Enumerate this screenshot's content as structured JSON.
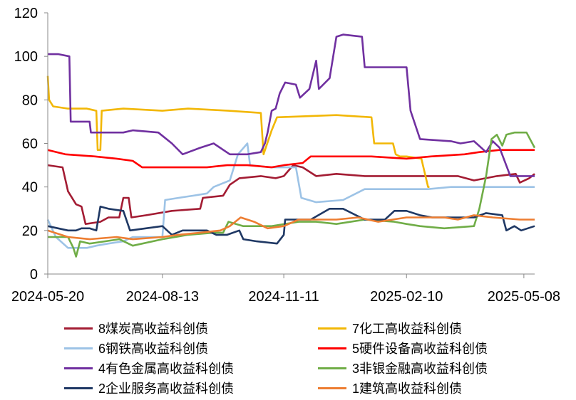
{
  "chart_data": {
    "type": "line",
    "ylim": [
      0,
      120
    ],
    "yticks": [
      0,
      20,
      40,
      60,
      80,
      100,
      120
    ],
    "xlim": [
      "2024-05-20",
      "2025-05-16"
    ],
    "xticks": [
      "2024-05-20",
      "2024-08-13",
      "2024-11-11",
      "2025-02-10",
      "2025-05-08"
    ],
    "grid": false,
    "legend_position": "bottom",
    "series": [
      {
        "name": "8煤炭高收益科创债",
        "color": "#A31C33",
        "points": [
          [
            "2024-05-20",
            50
          ],
          [
            "2024-05-31",
            49
          ],
          [
            "2024-06-04",
            38
          ],
          [
            "2024-06-10",
            32
          ],
          [
            "2024-06-14",
            31
          ],
          [
            "2024-06-17",
            23
          ],
          [
            "2024-06-28",
            24
          ],
          [
            "2024-07-04",
            26
          ],
          [
            "2024-07-12",
            26
          ],
          [
            "2024-07-15",
            35
          ],
          [
            "2024-07-19",
            35
          ],
          [
            "2024-07-21",
            26
          ],
          [
            "2024-08-01",
            27
          ],
          [
            "2024-08-20",
            29
          ],
          [
            "2024-09-10",
            30
          ],
          [
            "2024-09-12",
            35
          ],
          [
            "2024-09-27",
            36
          ],
          [
            "2024-10-02",
            41
          ],
          [
            "2024-10-09",
            44
          ],
          [
            "2024-10-25",
            45
          ],
          [
            "2024-11-05",
            44
          ],
          [
            "2024-11-11",
            45
          ],
          [
            "2024-11-18",
            50
          ],
          [
            "2024-11-25",
            49
          ],
          [
            "2024-12-05",
            45
          ],
          [
            "2024-12-20",
            46
          ],
          [
            "2025-01-10",
            45
          ],
          [
            "2025-02-10",
            45
          ],
          [
            "2025-03-20",
            45
          ],
          [
            "2025-04-01",
            43
          ],
          [
            "2025-04-18",
            45
          ],
          [
            "2025-05-02",
            46
          ],
          [
            "2025-05-05",
            42
          ],
          [
            "2025-05-12",
            44
          ],
          [
            "2025-05-16",
            46
          ]
        ]
      },
      {
        "name": "7化工高收益科创债",
        "color": "#F2B705",
        "points": [
          [
            "2024-05-20",
            91
          ],
          [
            "2024-05-21",
            80
          ],
          [
            "2024-05-24",
            77
          ],
          [
            "2024-06-04",
            76
          ],
          [
            "2024-06-18",
            76
          ],
          [
            "2024-06-25",
            75
          ],
          [
            "2024-06-26",
            57
          ],
          [
            "2024-06-28",
            57
          ],
          [
            "2024-06-29",
            75
          ],
          [
            "2024-07-15",
            76
          ],
          [
            "2024-08-13",
            75
          ],
          [
            "2024-09-01",
            76
          ],
          [
            "2024-10-01",
            75
          ],
          [
            "2024-10-25",
            74
          ],
          [
            "2024-10-27",
            55
          ],
          [
            "2024-11-02",
            66
          ],
          [
            "2024-11-06",
            72
          ],
          [
            "2024-12-20",
            73
          ],
          [
            "2025-01-15",
            72
          ],
          [
            "2025-01-17",
            60
          ],
          [
            "2025-01-31",
            60
          ],
          [
            "2025-02-02",
            55
          ],
          [
            "2025-02-05",
            54
          ],
          [
            "2025-02-10",
            54
          ],
          [
            "2025-02-21",
            53
          ],
          [
            "2025-02-26",
            40
          ],
          [
            "2025-02-27",
            40
          ]
        ]
      },
      {
        "name": "6钢铁高收益科创债",
        "color": "#9DC3E6",
        "points": [
          [
            "2024-05-20",
            25
          ],
          [
            "2024-05-26",
            17
          ],
          [
            "2024-06-04",
            12
          ],
          [
            "2024-06-18",
            12
          ],
          [
            "2024-06-25",
            13
          ],
          [
            "2024-07-04",
            14
          ],
          [
            "2024-07-15",
            15
          ],
          [
            "2024-07-22",
            17
          ],
          [
            "2024-08-13",
            17
          ],
          [
            "2024-08-15",
            34
          ],
          [
            "2024-08-25",
            35
          ],
          [
            "2024-09-05",
            36
          ],
          [
            "2024-09-15",
            37
          ],
          [
            "2024-09-20",
            40
          ],
          [
            "2024-10-02",
            43
          ],
          [
            "2024-10-08",
            55
          ],
          [
            "2024-10-15",
            60
          ],
          [
            "2024-10-17",
            50
          ],
          [
            "2024-11-01",
            49
          ],
          [
            "2024-11-20",
            49
          ],
          [
            "2024-11-24",
            35
          ],
          [
            "2024-12-05",
            33
          ],
          [
            "2024-12-25",
            34
          ],
          [
            "2025-01-10",
            39
          ],
          [
            "2025-02-10",
            39
          ],
          [
            "2025-02-26",
            39
          ],
          [
            "2025-03-15",
            40
          ],
          [
            "2025-04-15",
            40
          ],
          [
            "2025-05-16",
            40
          ]
        ]
      },
      {
        "name": "5硬件设备高收益科创债",
        "color": "#FF0000",
        "points": [
          [
            "2024-05-20",
            57
          ],
          [
            "2024-06-02",
            55
          ],
          [
            "2024-06-24",
            54
          ],
          [
            "2024-07-10",
            53
          ],
          [
            "2024-07-22",
            52
          ],
          [
            "2024-07-29",
            49
          ],
          [
            "2024-08-13",
            49
          ],
          [
            "2024-09-15",
            49
          ],
          [
            "2024-09-30",
            50
          ],
          [
            "2024-10-15",
            50
          ],
          [
            "2024-11-02",
            49
          ],
          [
            "2024-11-11",
            50
          ],
          [
            "2024-11-25",
            51
          ],
          [
            "2024-12-01",
            54
          ],
          [
            "2024-12-20",
            54
          ],
          [
            "2025-01-15",
            54
          ],
          [
            "2025-02-10",
            53
          ],
          [
            "2025-02-28",
            54
          ],
          [
            "2025-03-25",
            55
          ],
          [
            "2025-04-05",
            56
          ],
          [
            "2025-04-20",
            57
          ],
          [
            "2025-05-16",
            57
          ]
        ]
      },
      {
        "name": "4有色金属高收益科创债",
        "color": "#7030A0",
        "points": [
          [
            "2024-05-20",
            101
          ],
          [
            "2024-05-28",
            101
          ],
          [
            "2024-06-05",
            100
          ],
          [
            "2024-06-06",
            70
          ],
          [
            "2024-06-20",
            70
          ],
          [
            "2024-06-21",
            65
          ],
          [
            "2024-07-15",
            65
          ],
          [
            "2024-07-22",
            66
          ],
          [
            "2024-08-10",
            65
          ],
          [
            "2024-08-20",
            60
          ],
          [
            "2024-08-28",
            55
          ],
          [
            "2024-09-10",
            58
          ],
          [
            "2024-09-20",
            60
          ],
          [
            "2024-10-02",
            55
          ],
          [
            "2024-10-15",
            55
          ],
          [
            "2024-10-25",
            56
          ],
          [
            "2024-10-28",
            60
          ],
          [
            "2024-10-30",
            65
          ],
          [
            "2024-11-02",
            75
          ],
          [
            "2024-11-05",
            76
          ],
          [
            "2024-11-08",
            83
          ],
          [
            "2024-11-12",
            88
          ],
          [
            "2024-11-20",
            87
          ],
          [
            "2024-11-23",
            81
          ],
          [
            "2024-11-30",
            85
          ],
          [
            "2024-12-05",
            98
          ],
          [
            "2024-12-07",
            85
          ],
          [
            "2024-12-15",
            90
          ],
          [
            "2024-12-20",
            109
          ],
          [
            "2024-12-25",
            110
          ],
          [
            "2025-01-08",
            109
          ],
          [
            "2025-01-10",
            95
          ],
          [
            "2025-01-20",
            95
          ],
          [
            "2025-02-10",
            95
          ],
          [
            "2025-02-13",
            75
          ],
          [
            "2025-02-20",
            62
          ],
          [
            "2025-03-15",
            61
          ],
          [
            "2025-03-22",
            60
          ],
          [
            "2025-04-01",
            61
          ],
          [
            "2025-04-10",
            56
          ],
          [
            "2025-04-15",
            61
          ],
          [
            "2025-04-20",
            58
          ],
          [
            "2025-04-28",
            45
          ],
          [
            "2025-05-16",
            45
          ]
        ]
      },
      {
        "name": "3非银金融高收益科创债",
        "color": "#70AD47",
        "points": [
          [
            "2024-05-20",
            17
          ],
          [
            "2024-06-04",
            17
          ],
          [
            "2024-06-08",
            12
          ],
          [
            "2024-06-10",
            8
          ],
          [
            "2024-06-13",
            15
          ],
          [
            "2024-06-20",
            14
          ],
          [
            "2024-07-12",
            16
          ],
          [
            "2024-07-22",
            13
          ],
          [
            "2024-08-13",
            16
          ],
          [
            "2024-09-01",
            18
          ],
          [
            "2024-09-20",
            19
          ],
          [
            "2024-09-27",
            19
          ],
          [
            "2024-10-01",
            24
          ],
          [
            "2024-10-12",
            22
          ],
          [
            "2024-11-02",
            22
          ],
          [
            "2024-11-22",
            24
          ],
          [
            "2024-12-05",
            24
          ],
          [
            "2024-12-20",
            23
          ],
          [
            "2025-01-10",
            25
          ],
          [
            "2025-02-01",
            24
          ],
          [
            "2025-02-10",
            23
          ],
          [
            "2025-02-20",
            22
          ],
          [
            "2025-03-10",
            21
          ],
          [
            "2025-04-01",
            22
          ],
          [
            "2025-04-05",
            30
          ],
          [
            "2025-04-10",
            45
          ],
          [
            "2025-04-14",
            62
          ],
          [
            "2025-04-18",
            64
          ],
          [
            "2025-04-22",
            59
          ],
          [
            "2025-04-25",
            64
          ],
          [
            "2025-05-01",
            65
          ],
          [
            "2025-05-10",
            65
          ],
          [
            "2025-05-16",
            58
          ]
        ]
      },
      {
        "name": "2企业服务高收益科创债",
        "color": "#1F3864",
        "points": [
          [
            "2024-05-20",
            22
          ],
          [
            "2024-06-04",
            20
          ],
          [
            "2024-06-10",
            20
          ],
          [
            "2024-06-14",
            21
          ],
          [
            "2024-06-20",
            21
          ],
          [
            "2024-06-25",
            20
          ],
          [
            "2024-06-28",
            31
          ],
          [
            "2024-07-04",
            30
          ],
          [
            "2024-07-15",
            29
          ],
          [
            "2024-07-20",
            20
          ],
          [
            "2024-08-13",
            22
          ],
          [
            "2024-08-20",
            18
          ],
          [
            "2024-08-28",
            20
          ],
          [
            "2024-09-15",
            20
          ],
          [
            "2024-09-22",
            18
          ],
          [
            "2024-09-30",
            18
          ],
          [
            "2024-10-09",
            20
          ],
          [
            "2024-10-12",
            16
          ],
          [
            "2024-10-22",
            15
          ],
          [
            "2024-11-06",
            14
          ],
          [
            "2024-11-11",
            18
          ],
          [
            "2024-11-12",
            25
          ],
          [
            "2024-12-01",
            25
          ],
          [
            "2024-12-15",
            30
          ],
          [
            "2024-12-25",
            30
          ],
          [
            "2025-01-10",
            25
          ],
          [
            "2025-01-25",
            25
          ],
          [
            "2025-02-01",
            29
          ],
          [
            "2025-02-10",
            29
          ],
          [
            "2025-02-20",
            27
          ],
          [
            "2025-03-01",
            26
          ],
          [
            "2025-03-20",
            26
          ],
          [
            "2025-04-01",
            26
          ],
          [
            "2025-04-10",
            28
          ],
          [
            "2025-04-22",
            27
          ],
          [
            "2025-04-25",
            20
          ],
          [
            "2025-05-01",
            22
          ],
          [
            "2025-05-06",
            20
          ],
          [
            "2025-05-16",
            22
          ]
        ]
      },
      {
        "name": "1建筑高收益科创债",
        "color": "#ED7D31",
        "points": [
          [
            "2024-05-20",
            20
          ],
          [
            "2024-06-04",
            17
          ],
          [
            "2024-06-20",
            16
          ],
          [
            "2024-07-10",
            17
          ],
          [
            "2024-07-22",
            16
          ],
          [
            "2024-08-13",
            17
          ],
          [
            "2024-08-25",
            18
          ],
          [
            "2024-09-10",
            19
          ],
          [
            "2024-09-25",
            20
          ],
          [
            "2024-10-02",
            22
          ],
          [
            "2024-10-10",
            26
          ],
          [
            "2024-10-20",
            24
          ],
          [
            "2024-10-30",
            21
          ],
          [
            "2024-11-11",
            22
          ],
          [
            "2024-11-22",
            25
          ],
          [
            "2024-12-05",
            25
          ],
          [
            "2024-12-20",
            25
          ],
          [
            "2025-01-05",
            26
          ],
          [
            "2025-01-20",
            24
          ],
          [
            "2025-02-10",
            26
          ],
          [
            "2025-02-25",
            26
          ],
          [
            "2025-03-10",
            26
          ],
          [
            "2025-03-20",
            25
          ],
          [
            "2025-04-01",
            27
          ],
          [
            "2025-04-15",
            26
          ],
          [
            "2025-05-05",
            25
          ],
          [
            "2025-05-16",
            25
          ]
        ]
      }
    ]
  }
}
